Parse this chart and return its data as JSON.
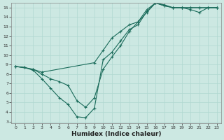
{
  "xlabel": "Humidex (Indice chaleur)",
  "background_color": "#cce8e2",
  "grid_color": "#b0d8d0",
  "line_color": "#1a6b5a",
  "xlim": [
    -0.5,
    23.5
  ],
  "ylim": [
    2.8,
    15.5
  ],
  "yticks": [
    3,
    4,
    5,
    6,
    7,
    8,
    9,
    10,
    11,
    12,
    13,
    14,
    15
  ],
  "xticks": [
    0,
    1,
    2,
    3,
    4,
    5,
    6,
    7,
    8,
    9,
    10,
    11,
    12,
    13,
    14,
    15,
    16,
    17,
    18,
    19,
    20,
    21,
    22,
    23
  ],
  "line1_x": [
    0,
    1,
    2,
    3,
    4,
    5,
    6,
    7,
    8,
    9,
    10,
    11,
    12,
    13,
    14,
    15,
    16,
    17,
    18,
    19,
    20,
    21,
    22,
    23
  ],
  "line1_y": [
    8.8,
    8.7,
    8.5,
    8.0,
    7.5,
    7.2,
    6.8,
    5.2,
    4.5,
    5.5,
    8.5,
    9.8,
    11.0,
    12.5,
    13.5,
    14.5,
    15.5,
    15.2,
    15.0,
    15.0,
    15.0,
    15.0,
    15.0,
    15.0
  ],
  "line2_x": [
    0,
    1,
    2,
    3,
    4,
    5,
    6,
    7,
    8,
    9,
    10,
    11,
    12,
    13,
    14,
    15,
    16,
    17,
    18,
    19,
    20,
    21,
    22,
    23
  ],
  "line2_y": [
    8.8,
    8.7,
    8.4,
    7.5,
    6.5,
    5.5,
    4.8,
    3.5,
    3.4,
    4.4,
    9.5,
    10.3,
    11.5,
    12.7,
    13.2,
    14.6,
    15.5,
    15.2,
    15.0,
    15.0,
    15.0,
    15.0,
    15.0,
    15.0
  ],
  "line3_x": [
    0,
    2,
    3,
    9,
    10,
    11,
    12,
    13,
    14,
    15,
    16,
    17,
    18,
    19,
    20,
    21,
    22,
    23
  ],
  "line3_y": [
    8.8,
    8.5,
    8.2,
    9.2,
    10.5,
    11.8,
    12.5,
    13.2,
    13.5,
    14.8,
    15.5,
    15.3,
    15.0,
    15.0,
    14.8,
    14.5,
    15.0,
    15.0
  ]
}
